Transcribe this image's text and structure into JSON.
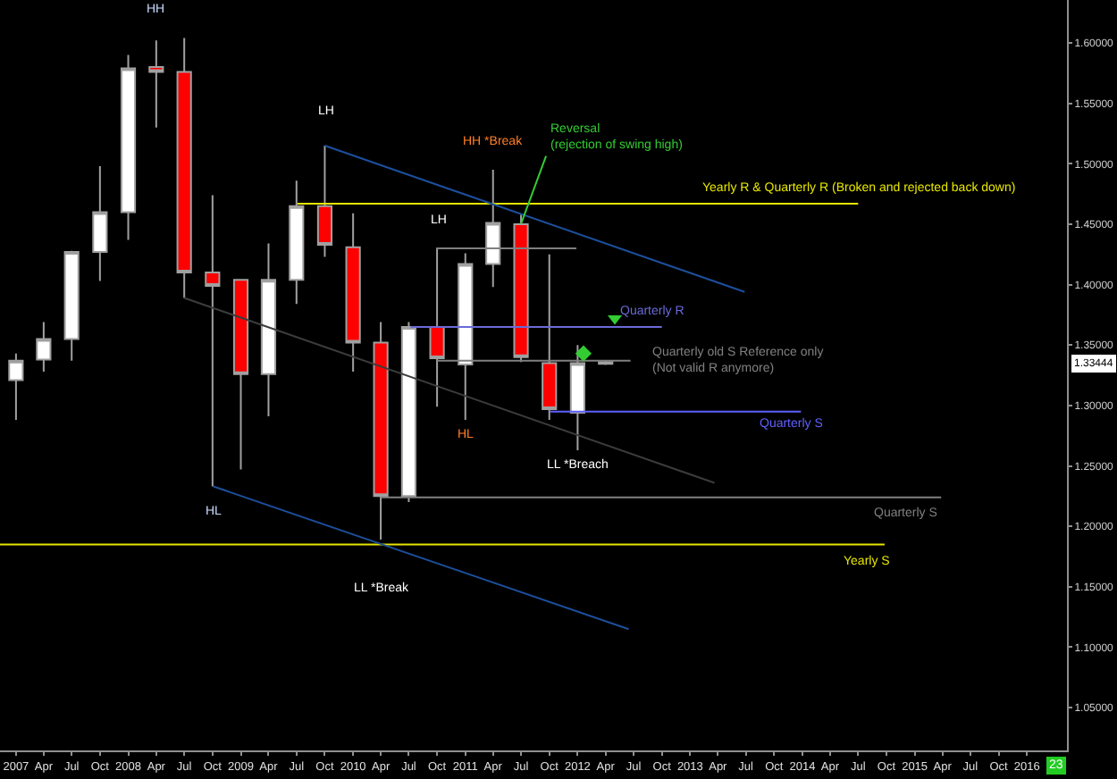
{
  "chart_data": {
    "type": "candlestick",
    "x": [
      "2007-01",
      "2007-04",
      "2007-07",
      "2007-10",
      "2008-01",
      "2008-04",
      "2008-07",
      "2008-10",
      "2009-01",
      "2009-04",
      "2009-07",
      "2009-10",
      "2010-01",
      "2010-04",
      "2010-07",
      "2010-10",
      "2011-01",
      "2011-04",
      "2011-07",
      "2011-10",
      "2012-01",
      "2012-04"
    ],
    "ohlc": [
      [
        1.321,
        1.343,
        1.288,
        1.337
      ],
      [
        1.338,
        1.369,
        1.328,
        1.355
      ],
      [
        1.355,
        1.428,
        1.337,
        1.427
      ],
      [
        1.427,
        1.498,
        1.403,
        1.46
      ],
      [
        1.46,
        1.59,
        1.437,
        1.579
      ],
      [
        1.58,
        1.602,
        1.53,
        1.576
      ],
      [
        1.576,
        1.604,
        1.389,
        1.41
      ],
      [
        1.41,
        1.474,
        1.233,
        1.399
      ],
      [
        1.404,
        1.404,
        1.247,
        1.326
      ],
      [
        1.326,
        1.434,
        1.291,
        1.404
      ],
      [
        1.404,
        1.486,
        1.384,
        1.465
      ],
      [
        1.465,
        1.515,
        1.423,
        1.433
      ],
      [
        1.431,
        1.459,
        1.328,
        1.352
      ],
      [
        1.352,
        1.369,
        1.189,
        1.225
      ],
      [
        1.225,
        1.369,
        1.22,
        1.365
      ],
      [
        1.365,
        1.43,
        1.299,
        1.339
      ],
      [
        1.334,
        1.426,
        1.288,
        1.417
      ],
      [
        1.417,
        1.495,
        1.398,
        1.451
      ],
      [
        1.45,
        1.458,
        1.336,
        1.34
      ],
      [
        1.335,
        1.425,
        1.288,
        1.297
      ],
      [
        1.294,
        1.35,
        1.263,
        1.335
      ],
      [
        1.336,
        1.337,
        1.3335,
        1.3344
      ]
    ],
    "series": [
      {
        "type": "line",
        "name": "Yearly R & Quarterly R (Broken and rejected back down)",
        "color": "#e6e600",
        "x": [
          "2009-07-04",
          "2014-07-01"
        ],
        "values": [
          1.467,
          1.467
        ]
      },
      {
        "type": "line",
        "name": "Yearly S",
        "color": "#e6e600",
        "x": [
          "2006-11-10",
          "2014-09-25"
        ],
        "values": [
          1.185,
          1.185
        ]
      },
      {
        "type": "line",
        "name": "Quarterly R",
        "color": "#6a6ad8",
        "x": [
          "2010-07-07",
          "2012-10-01"
        ],
        "values": [
          1.365,
          1.365
        ]
      },
      {
        "type": "line",
        "name": "Quarterly S",
        "color": "#6060ff",
        "x": [
          "2011-10-04",
          "2013-12-27"
        ],
        "values": [
          1.295,
          1.295
        ]
      },
      {
        "type": "line",
        "name": "Quarterly S",
        "color": "#808080",
        "x": [
          "2010-04-01",
          "2015-03-28"
        ],
        "values": [
          1.224,
          1.224
        ]
      },
      {
        "type": "line",
        "name": "Quarterly old S Reference only\n(Not valid R anymore)",
        "color": "#808080",
        "x": [
          "2010-10-01",
          "2012-06-21"
        ],
        "values": [
          1.337,
          1.337
        ]
      },
      {
        "type": "line",
        "color": "#808080",
        "x": [
          "2010-09-28",
          "2011-12-28"
        ],
        "values": [
          1.43,
          1.43
        ]
      },
      {
        "type": "line",
        "color": "#1c4f9c",
        "x": [
          "2009-10-01",
          "2013-06-27"
        ],
        "values": [
          1.515,
          1.394
        ]
      },
      {
        "type": "line",
        "color": "#1c4f9c",
        "x": [
          "2008-10-04",
          "2012-06-15"
        ],
        "values": [
          1.233,
          1.115
        ]
      },
      {
        "type": "line",
        "color": "#3c3c3c",
        "x": [
          "2008-07-01",
          "2013-03-21"
        ],
        "values": [
          1.389,
          1.236
        ]
      },
      {
        "type": "scatter",
        "marker": "triangle",
        "color": "#33cc33",
        "x": [
          "2012-05-01"
        ],
        "values": [
          1.372
        ]
      },
      {
        "type": "scatter",
        "marker": "diamond",
        "color": "#33cc33",
        "x": [
          "2012-01-20"
        ],
        "values": [
          1.343
        ]
      }
    ],
    "xlim": [
      "2006-11-10",
      "2016-05-10"
    ],
    "ylim": [
      1.0146,
      1.6355
    ],
    "xticks": [
      {
        "value": "2007-01",
        "label": "2007"
      },
      {
        "value": "2007-04",
        "label": "Apr"
      },
      {
        "value": "2007-07",
        "label": "Jul"
      },
      {
        "value": "2007-10",
        "label": "Oct"
      },
      {
        "value": "2008-01",
        "label": "2008"
      },
      {
        "value": "2008-04",
        "label": "Apr"
      },
      {
        "value": "2008-07",
        "label": "Jul"
      },
      {
        "value": "2008-10",
        "label": "Oct"
      },
      {
        "value": "2009-01",
        "label": "2009"
      },
      {
        "value": "2009-04",
        "label": "Apr"
      },
      {
        "value": "2009-07",
        "label": "Jul"
      },
      {
        "value": "2009-10",
        "label": "Oct"
      },
      {
        "value": "2010-01",
        "label": "2010"
      },
      {
        "value": "2010-04",
        "label": "Apr"
      },
      {
        "value": "2010-07",
        "label": "Jul"
      },
      {
        "value": "2010-10",
        "label": "Oct"
      },
      {
        "value": "2011-01",
        "label": "2011"
      },
      {
        "value": "2011-04",
        "label": "Apr"
      },
      {
        "value": "2011-07",
        "label": "Jul"
      },
      {
        "value": "2011-10",
        "label": "Oct"
      },
      {
        "value": "2012-01",
        "label": "2012"
      },
      {
        "value": "2012-04",
        "label": "Apr"
      },
      {
        "value": "2012-07",
        "label": "Jul"
      },
      {
        "value": "2012-10",
        "label": "Oct"
      },
      {
        "value": "2013-01",
        "label": "2013"
      },
      {
        "value": "2013-04",
        "label": "Apr"
      },
      {
        "value": "2013-07",
        "label": "Jul"
      },
      {
        "value": "2013-10",
        "label": "Oct"
      },
      {
        "value": "2014-01",
        "label": "2014"
      },
      {
        "value": "2014-04",
        "label": "Apr"
      },
      {
        "value": "2014-07",
        "label": "Jul"
      },
      {
        "value": "2014-10",
        "label": "Oct"
      },
      {
        "value": "2015-01",
        "label": "2015"
      },
      {
        "value": "2015-04",
        "label": "Apr"
      },
      {
        "value": "2015-07",
        "label": "Jul"
      },
      {
        "value": "2015-10",
        "label": "Oct"
      },
      {
        "value": "2016-01",
        "label": "2016"
      }
    ],
    "yticks": [
      {
        "value": 1.05,
        "label": "1.05000"
      },
      {
        "value": 1.1,
        "label": "1.10000"
      },
      {
        "value": 1.15,
        "label": "1.15000"
      },
      {
        "value": 1.2,
        "label": "1.20000"
      },
      {
        "value": 1.25,
        "label": "1.25000"
      },
      {
        "value": 1.3,
        "label": "1.30000"
      },
      {
        "value": 1.35,
        "label": "1.35000"
      },
      {
        "value": 1.4,
        "label": "1.40000"
      },
      {
        "value": 1.45,
        "label": "1.45000"
      },
      {
        "value": 1.5,
        "label": "1.50000"
      },
      {
        "value": 1.55,
        "label": "1.55000"
      },
      {
        "value": 1.6,
        "label": "1.60000"
      }
    ],
    "annotations": [
      "HH",
      "LH",
      "HH *Break",
      {
        "text": "Reversal\n(rejection of swing high)",
        "x": "2011-07-01",
        "y": 1.4502
      },
      "LH",
      "HL",
      "HL",
      "LL *Break",
      "LL *Breach",
      {
        "text": "1.33444",
        "y": 1.33444
      },
      "23"
    ],
    "grid": false
  }
}
